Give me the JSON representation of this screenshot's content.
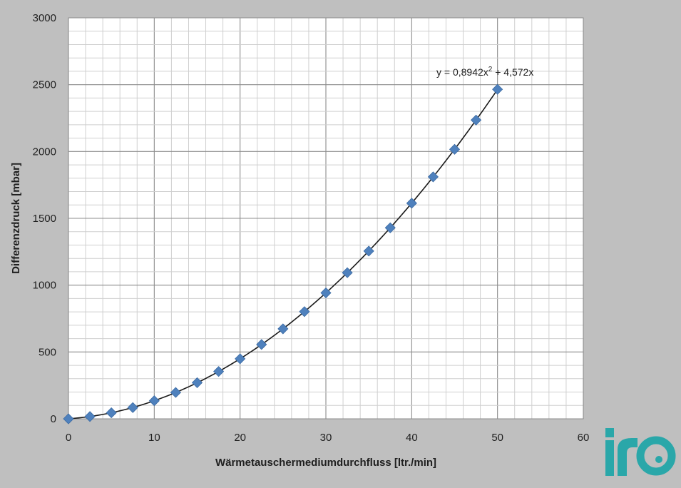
{
  "chart_data": {
    "type": "scatter",
    "title": "",
    "xlabel": "Wärmetauschermediumdurchfluss [ltr./min]",
    "ylabel": "Differenzdruck [mbar]",
    "xlim": [
      0,
      60
    ],
    "ylim": [
      0,
      3000
    ],
    "x_ticks": [
      "0",
      "10",
      "20",
      "30",
      "40",
      "50",
      "60"
    ],
    "y_ticks": [
      "0",
      "500",
      "1000",
      "1500",
      "2000",
      "2500",
      "3000"
    ],
    "grid": true,
    "legend": "none",
    "marker_color": "#4f81bd",
    "trendline_color": "#1a1a1a",
    "trendline": {
      "type": "polynomial",
      "a": 0.8942,
      "b": 4.572,
      "equation_prefix": "y = 0,8942x",
      "equation_sup": "2",
      "equation_suffix": " + 4,572x"
    },
    "series": [
      {
        "x": [
          0,
          2.5,
          5,
          7.5,
          10,
          12.5,
          15,
          17.5,
          20,
          22.5,
          25,
          27.5,
          30,
          32.5,
          35,
          37.5,
          40,
          42.5,
          45,
          47.5,
          50
        ],
        "y": [
          0,
          17,
          45,
          84,
          135,
          197,
          270,
          354,
          449,
          556,
          673,
          802,
          942,
          1093,
          1255,
          1429,
          1613,
          1810,
          2016,
          2235,
          2465
        ]
      }
    ]
  },
  "logo": {
    "text": "iro",
    "color": "#2aa7a9"
  }
}
